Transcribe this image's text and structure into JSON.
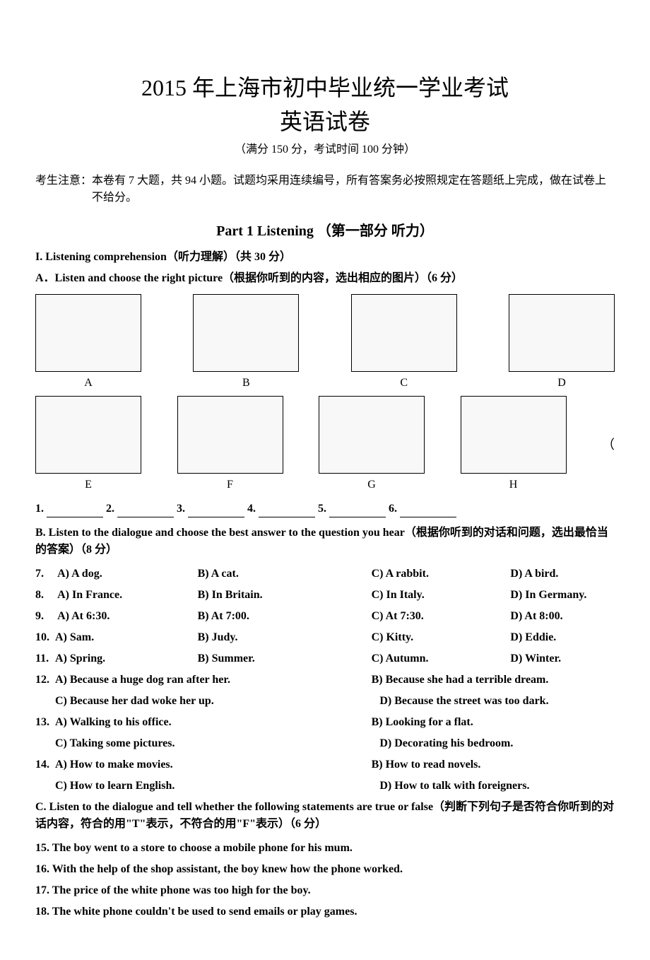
{
  "title_main": "2015 年上海市初中毕业统一学业考试",
  "title_sub": "英语试卷",
  "title_info": "（满分 150 分，考试时间 100 分钟）",
  "notice_label": "考生注意：",
  "notice_text": "本卷有 7 大题，共 94 小题。试题均采用连续编号，所有答案务必按照规定在答题纸上完成，做在试卷上不给分。",
  "part1_title": "Part 1    Listening  （第一部分  听力）",
  "section1": "I. Listening comprehension（听力理解）（共 30 分）",
  "subsectionA": "A．Listen and choose the right picture（根据你听到的内容，选出相应的图片）（6 分）",
  "picture_labels_row1": [
    "A",
    "B",
    "C",
    "D"
  ],
  "picture_labels_row2": [
    "E",
    "F",
    "G",
    "H"
  ],
  "blanks": [
    "1.",
    "2.",
    "3.",
    "4.",
    "5.",
    "6."
  ],
  "subsectionB": "B. Listen to the dialogue and choose the best answer to the question you hear（根据你听到的对话和问题，选出最恰当的答案）（8 分）",
  "q7": {
    "num": "7.",
    "a": "A) A dog.",
    "b": "B) A cat.",
    "c": "C) A rabbit.",
    "d": "D) A bird."
  },
  "q8": {
    "num": "8.",
    "a": "A) In France.",
    "b": "B) In Britain.",
    "c": "C) In Italy.",
    "d": "D) In Germany."
  },
  "q9": {
    "num": "9.",
    "a": "A) At 6:30.",
    "b": "B) At 7:00.",
    "c": "C) At 7:30.",
    "d": "D) At 8:00."
  },
  "q10": {
    "num": "10.",
    "a": "A) Sam.",
    "b": "B) Judy.",
    "c": "C) Kitty.",
    "d": "D) Eddie."
  },
  "q11": {
    "num": "11.",
    "a": "A) Spring.",
    "b": "B) Summer.",
    "c": "C) Autumn.",
    "d": "D) Winter."
  },
  "q12": {
    "num": "12.",
    "a": "A) Because a huge dog ran after her.",
    "b": "B) Because she had a terrible dream.",
    "c": "C) Because her dad woke her up.",
    "d": "D) Because the street was too dark."
  },
  "q13": {
    "num": "13.",
    "a": "A) Walking to his office.",
    "b": "B) Looking for a flat.",
    "c": "C) Taking some pictures.",
    "d": "D) Decorating his bedroom."
  },
  "q14": {
    "num": "14.",
    "a": "A) How to make movies.",
    "b": "B) How to read novels.",
    "c": "C) How to learn English.",
    "d": "D) How to talk with foreigners."
  },
  "subsectionC": "C. Listen to the dialogue and tell whether the following statements are true or false（判断下列句子是否符合你听到的对话内容，符合的用\"T\"表示，不符合的用\"F\"表示）（6 分）",
  "s15": "15. The boy went to a store to choose a mobile phone for his mum.",
  "s16": "16. With the help of the shop assistant, the boy knew how the phone worked.",
  "s17": "17. The price of the white phone was too high for the boy.",
  "s18": "18. The white phone couldn't be used to send emails or play games.",
  "bracket": "（"
}
